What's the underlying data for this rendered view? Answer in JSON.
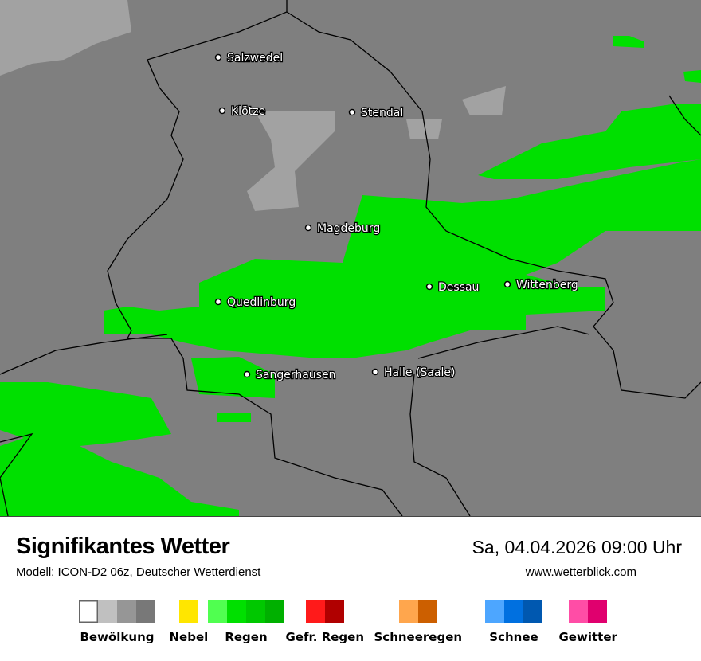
{
  "header": {
    "title": "Signifikantes Wetter",
    "model": "Modell: ICON-D2 06z, Deutscher Wetterdienst",
    "datetime": "Sa, 04.04.2026 09:00 Uhr",
    "website": "www.wetterblick.com"
  },
  "map": {
    "colors": {
      "background": "#7f7f7f",
      "cloud_light": "#a2a2a2",
      "rain": "#00e000",
      "border": "#000000"
    },
    "cities": [
      {
        "name": "Salzwedel"
      },
      {
        "name": "Klötze"
      },
      {
        "name": "Stendal"
      },
      {
        "name": "Magdeburg"
      },
      {
        "name": "Dessau"
      },
      {
        "name": "Wittenberg"
      },
      {
        "name": "Quedlinburg"
      },
      {
        "name": "Sangerhausen"
      },
      {
        "name": "Halle (Saale)"
      }
    ]
  },
  "legend": [
    {
      "label": "Bewölkung",
      "colors": [
        "#ffffff",
        "#c0c0c0",
        "#969696",
        "#787878"
      ]
    },
    {
      "label": "Nebel",
      "colors": [
        "#ffe600"
      ]
    },
    {
      "label": "Regen",
      "colors": [
        "#50ff50",
        "#00e000",
        "#00c800",
        "#00b000"
      ]
    },
    {
      "label": "Gefr. Regen",
      "colors": [
        "#ff1a1a",
        "#b00000"
      ]
    },
    {
      "label": "Schneeregen",
      "colors": [
        "#ffa64d",
        "#cc5f00"
      ]
    },
    {
      "label": "Schnee",
      "colors": [
        "#4da6ff",
        "#0070e0",
        "#0058b0"
      ]
    },
    {
      "label": "Gewitter",
      "colors": [
        "#ff4da6",
        "#e0006e"
      ]
    }
  ]
}
